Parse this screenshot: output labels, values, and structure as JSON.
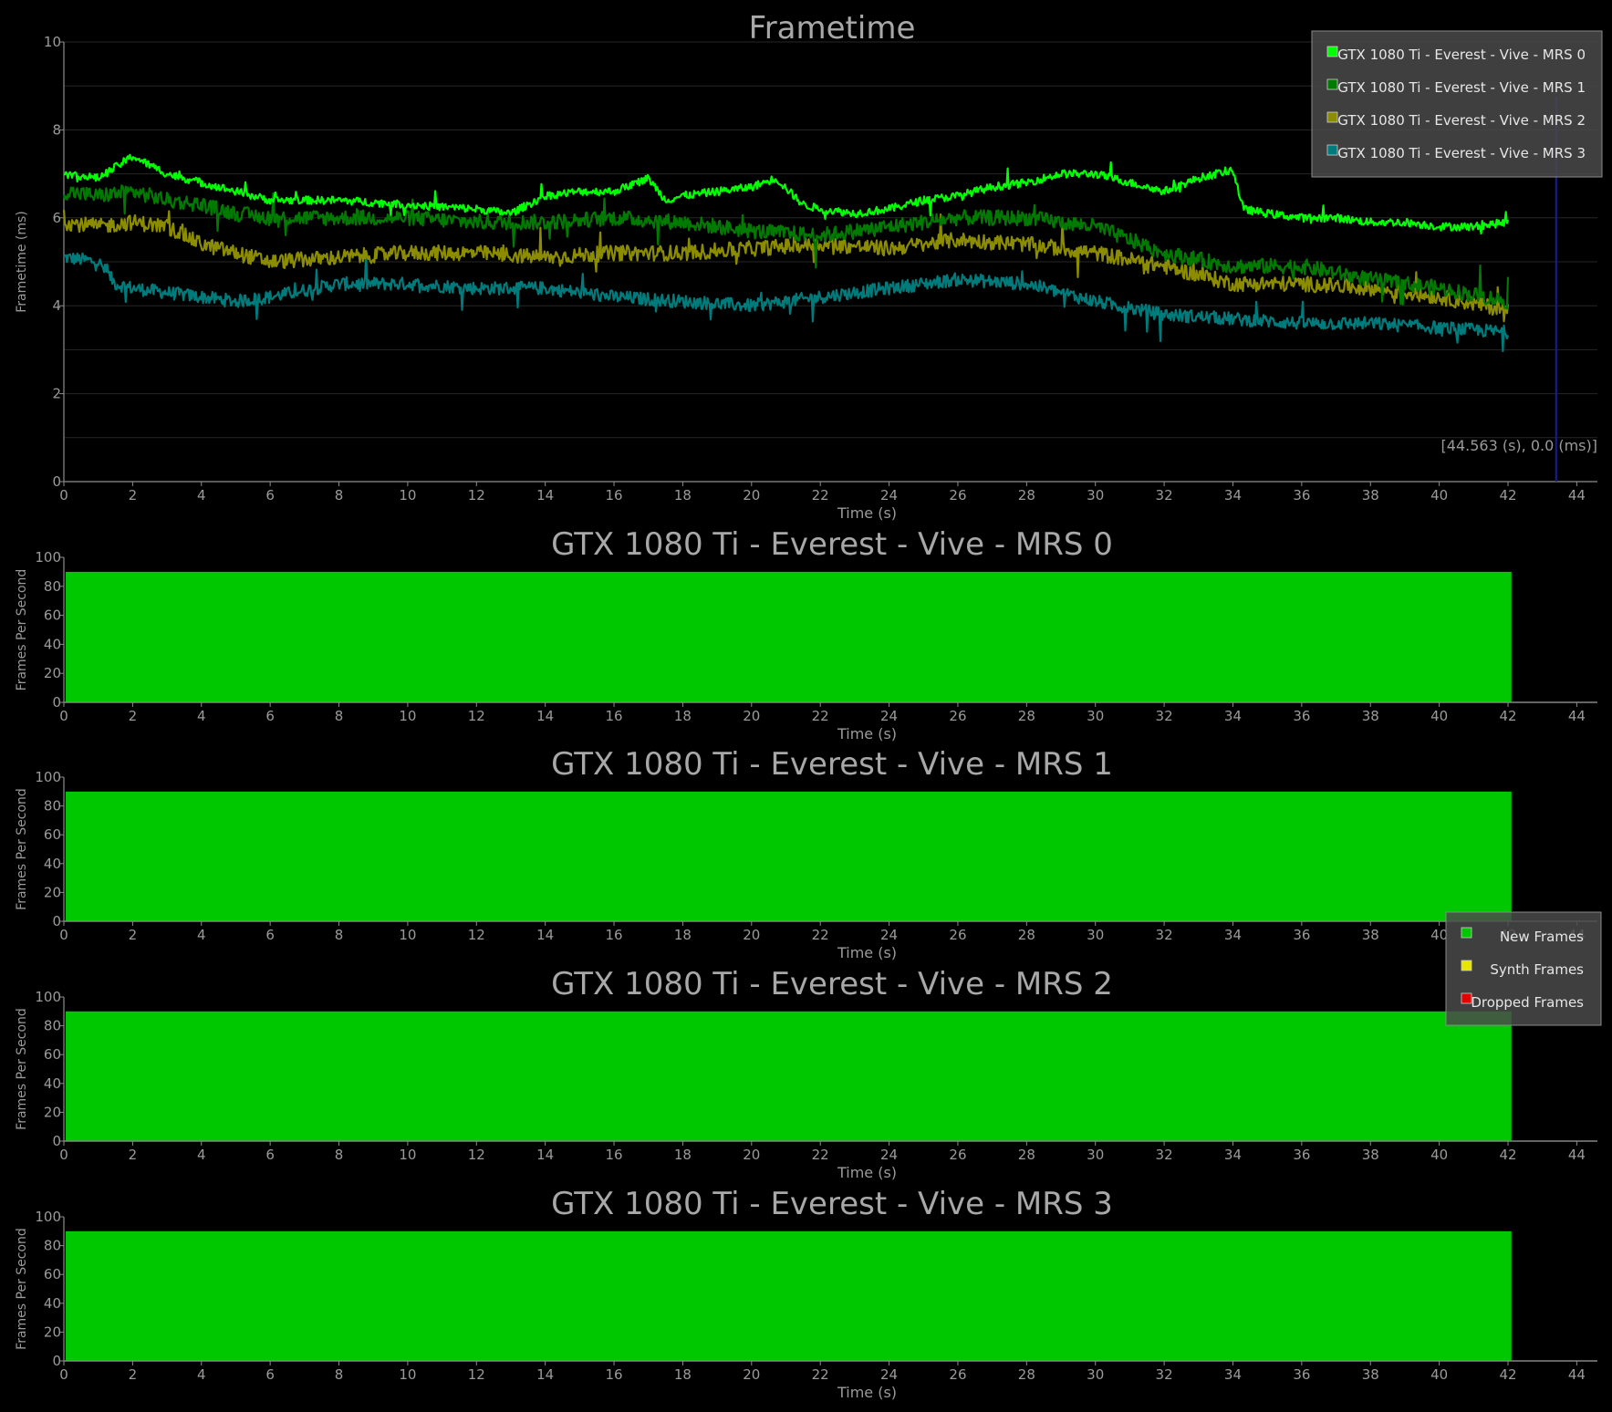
{
  "colors": {
    "background": "#000000",
    "axis": "#8c8c8c",
    "grid": "#262626",
    "text": "#9a9a9a",
    "title": "#a8a8a8",
    "fps_fill": "#00c800",
    "cursor_line": "#1a1aa0",
    "legend_bg": "#4a4a4a",
    "legend_border": "#8a8a8a"
  },
  "frametime": {
    "chart_data": {
      "type": "line",
      "title": "Frametime",
      "xlabel": "Time (s)",
      "ylabel": "Frametime (ms)",
      "xlim": [
        0,
        44.6
      ],
      "ylim": [
        0,
        10
      ],
      "x_ticks": [
        "0",
        "2",
        "4",
        "6",
        "8",
        "10",
        "12",
        "14",
        "16",
        "18",
        "20",
        "22",
        "24",
        "26",
        "28",
        "30",
        "32",
        "34",
        "36",
        "38",
        "40",
        "42",
        "44"
      ],
      "y_ticks": [
        "0",
        "2",
        "4",
        "6",
        "8",
        "10"
      ],
      "grid": true,
      "legend_position": "top-right",
      "series": [
        {
          "name": "GTX 1080 Ti - Everest - Vive - MRS 0",
          "color": "#00ff00",
          "x": [
            0,
            1,
            2,
            3,
            4,
            5,
            6,
            8,
            10,
            12,
            13,
            14,
            15,
            16,
            17,
            17.5,
            18,
            19,
            20,
            20.7,
            21.5,
            22,
            23,
            24,
            25,
            26,
            27,
            28,
            29,
            30,
            31,
            32,
            33,
            34,
            34.3,
            35,
            36,
            37,
            38,
            39,
            40,
            41,
            42
          ],
          "y": [
            7.0,
            6.9,
            7.4,
            7.0,
            6.8,
            6.6,
            6.4,
            6.4,
            6.3,
            6.2,
            6.1,
            6.5,
            6.6,
            6.6,
            6.9,
            6.4,
            6.5,
            6.6,
            6.7,
            6.9,
            6.3,
            6.2,
            6.1,
            6.2,
            6.4,
            6.5,
            6.7,
            6.8,
            7.0,
            7.0,
            6.8,
            6.6,
            6.9,
            7.1,
            6.2,
            6.1,
            6.0,
            6.0,
            5.9,
            5.9,
            5.8,
            5.8,
            5.9
          ]
        },
        {
          "name": "GTX 1080 Ti - Everest - Vive - MRS 1",
          "color": "#007a00",
          "x": [
            0,
            1,
            2,
            3,
            4,
            5,
            6,
            8,
            10,
            12,
            14,
            16,
            18,
            20,
            22,
            24,
            26,
            28,
            30,
            32,
            34,
            36,
            38,
            40,
            42
          ],
          "y": [
            6.6,
            6.5,
            6.6,
            6.4,
            6.3,
            6.1,
            6.0,
            6.0,
            6.0,
            5.9,
            5.9,
            6.0,
            5.9,
            5.7,
            5.6,
            5.8,
            6.0,
            6.0,
            5.8,
            5.2,
            4.9,
            4.9,
            4.6,
            4.4,
            4.1
          ]
        },
        {
          "name": "GTX 1080 Ti - Everest - Vive - MRS 2",
          "color": "#8c8c00",
          "x": [
            0,
            1,
            2,
            3,
            4,
            5,
            6,
            8,
            10,
            12,
            14,
            16,
            18,
            20,
            22,
            24,
            26,
            28,
            30,
            32,
            34,
            36,
            38,
            40,
            42
          ],
          "y": [
            5.9,
            5.8,
            5.9,
            5.8,
            5.4,
            5.2,
            5.0,
            5.1,
            5.2,
            5.2,
            5.1,
            5.2,
            5.2,
            5.3,
            5.4,
            5.3,
            5.5,
            5.4,
            5.2,
            4.9,
            4.5,
            4.5,
            4.4,
            4.2,
            3.9
          ]
        },
        {
          "name": "GTX 1080 Ti - Everest - Vive - MRS 3",
          "color": "#007b7b",
          "x": [
            0,
            1,
            1.5,
            2,
            3,
            4,
            5,
            6,
            8,
            10,
            12,
            14,
            16,
            18,
            20,
            22,
            24,
            26,
            28,
            30,
            32,
            34,
            36,
            38,
            40,
            42
          ],
          "y": [
            5.1,
            5.0,
            4.5,
            4.4,
            4.3,
            4.2,
            4.1,
            4.2,
            4.5,
            4.5,
            4.4,
            4.4,
            4.2,
            4.1,
            4.0,
            4.2,
            4.4,
            4.6,
            4.5,
            4.1,
            3.8,
            3.7,
            3.6,
            3.6,
            3.5,
            3.4
          ]
        }
      ],
      "cursor": {
        "x": 43.4,
        "label": "[44.563 (s), 0.0 (ms)]"
      }
    }
  },
  "fps_charts": [
    {
      "chart_data": {
        "type": "area",
        "title": "GTX 1080 Ti - Everest - Vive - MRS 0",
        "xlabel": "Time (s)",
        "ylabel": "Frames Per Second",
        "xlim": [
          0,
          44.6
        ],
        "ylim": [
          0,
          100
        ],
        "x_ticks": [
          "0",
          "2",
          "4",
          "6",
          "8",
          "10",
          "12",
          "14",
          "16",
          "18",
          "20",
          "22",
          "24",
          "26",
          "28",
          "30",
          "32",
          "34",
          "36",
          "38",
          "40",
          "42",
          "44"
        ],
        "y_ticks": [
          "0",
          "20",
          "40",
          "60",
          "80",
          "100"
        ],
        "x_range": [
          0,
          42.1
        ],
        "value": 90
      }
    },
    {
      "chart_data": {
        "type": "area",
        "title": "GTX 1080 Ti - Everest - Vive - MRS 1",
        "xlabel": "Time (s)",
        "ylabel": "Frames Per Second",
        "xlim": [
          0,
          44.6
        ],
        "ylim": [
          0,
          100
        ],
        "x_ticks": [
          "0",
          "2",
          "4",
          "6",
          "8",
          "10",
          "12",
          "14",
          "16",
          "18",
          "20",
          "22",
          "24",
          "26",
          "28",
          "30",
          "32",
          "34",
          "36",
          "38",
          "40",
          "42",
          "44"
        ],
        "y_ticks": [
          "0",
          "20",
          "40",
          "60",
          "80",
          "100"
        ],
        "x_range": [
          0,
          42.1
        ],
        "value": 90
      }
    },
    {
      "chart_data": {
        "type": "area",
        "title": "GTX 1080 Ti - Everest - Vive - MRS 2",
        "xlabel": "Time (s)",
        "ylabel": "Frames Per Second",
        "xlim": [
          0,
          44.6
        ],
        "ylim": [
          0,
          100
        ],
        "x_ticks": [
          "0",
          "2",
          "4",
          "6",
          "8",
          "10",
          "12",
          "14",
          "16",
          "18",
          "20",
          "22",
          "24",
          "26",
          "28",
          "30",
          "32",
          "34",
          "36",
          "38",
          "40",
          "42",
          "44"
        ],
        "y_ticks": [
          "0",
          "20",
          "40",
          "60",
          "80",
          "100"
        ],
        "x_range": [
          0,
          42.1
        ],
        "value": 90
      }
    },
    {
      "chart_data": {
        "type": "area",
        "title": "GTX 1080 Ti - Everest - Vive - MRS 3",
        "xlabel": "Time (s)",
        "ylabel": "Frames Per Second",
        "xlim": [
          0,
          44.6
        ],
        "ylim": [
          0,
          100
        ],
        "x_ticks": [
          "0",
          "2",
          "4",
          "6",
          "8",
          "10",
          "12",
          "14",
          "16",
          "18",
          "20",
          "22",
          "24",
          "26",
          "28",
          "30",
          "32",
          "34",
          "36",
          "38",
          "40",
          "42",
          "44"
        ],
        "y_ticks": [
          "0",
          "20",
          "40",
          "60",
          "80",
          "100"
        ],
        "x_range": [
          0,
          42.1
        ],
        "value": 90
      }
    }
  ],
  "frame_legend": {
    "position": "right",
    "items": [
      {
        "label": "New Frames",
        "color": "#00c800"
      },
      {
        "label": "Synth Frames",
        "color": "#e6e600"
      },
      {
        "label": "Dropped Frames",
        "color": "#e60000"
      }
    ]
  }
}
